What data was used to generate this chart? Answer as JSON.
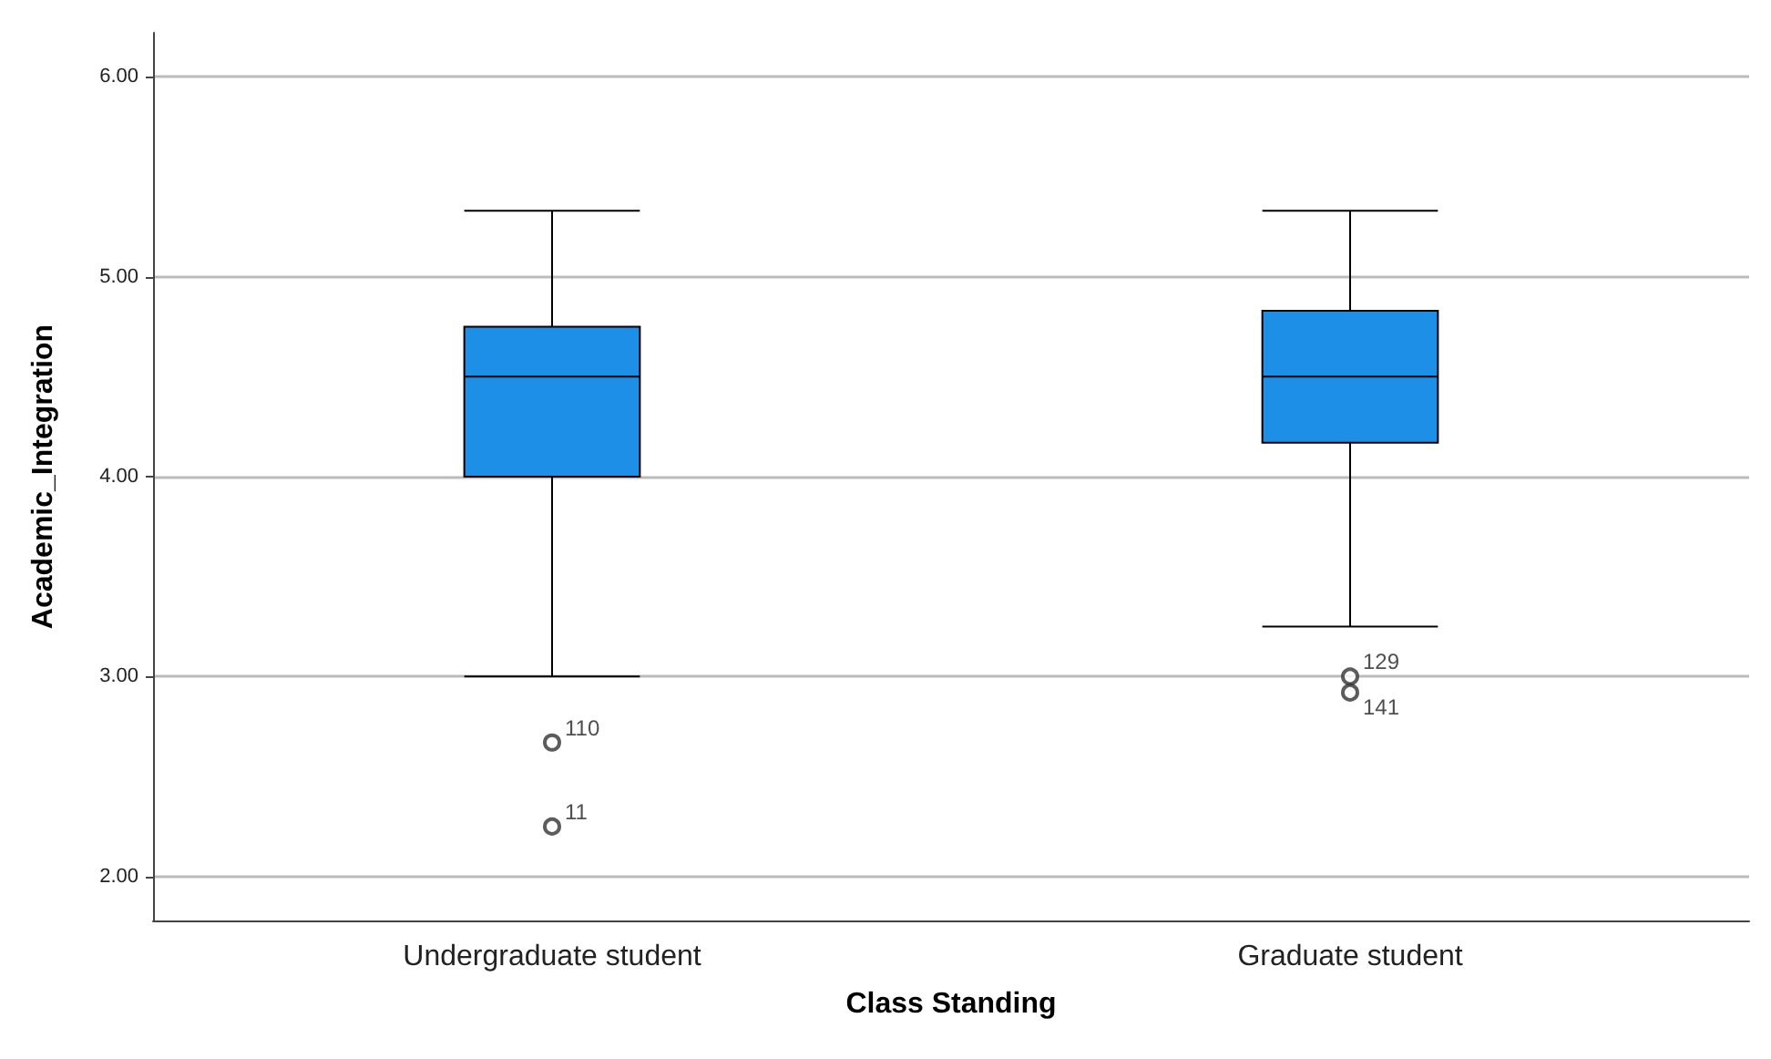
{
  "chart_data": {
    "type": "box",
    "xlabel": "Class Standing",
    "ylabel": "Academic_Integration",
    "categories": [
      "Undergraduate student",
      "Graduate student"
    ],
    "color": "#1e8fe6",
    "boxes": [
      {
        "low": 3.0,
        "q1": 4.0,
        "median": 4.5,
        "q3": 4.75,
        "high": 5.33,
        "outliers": [
          2.67,
          2.25
        ]
      },
      {
        "low": 3.25,
        "q1": 4.17,
        "median": 4.5,
        "q3": 4.83,
        "high": 5.33,
        "outliers": [
          3.0,
          2.92
        ]
      }
    ],
    "ylim": [
      1.78,
      6.22
    ],
    "yticks": [
      {
        "value": 2,
        "label": "2.00"
      },
      {
        "value": 3,
        "label": "3.00"
      },
      {
        "value": 4,
        "label": "4.00"
      },
      {
        "value": 5,
        "label": "5.00"
      },
      {
        "value": 6,
        "label": "6.00"
      }
    ],
    "grid": "y",
    "marker": "circle",
    "annotations": [
      "110",
      "11",
      "129",
      "141"
    ]
  }
}
